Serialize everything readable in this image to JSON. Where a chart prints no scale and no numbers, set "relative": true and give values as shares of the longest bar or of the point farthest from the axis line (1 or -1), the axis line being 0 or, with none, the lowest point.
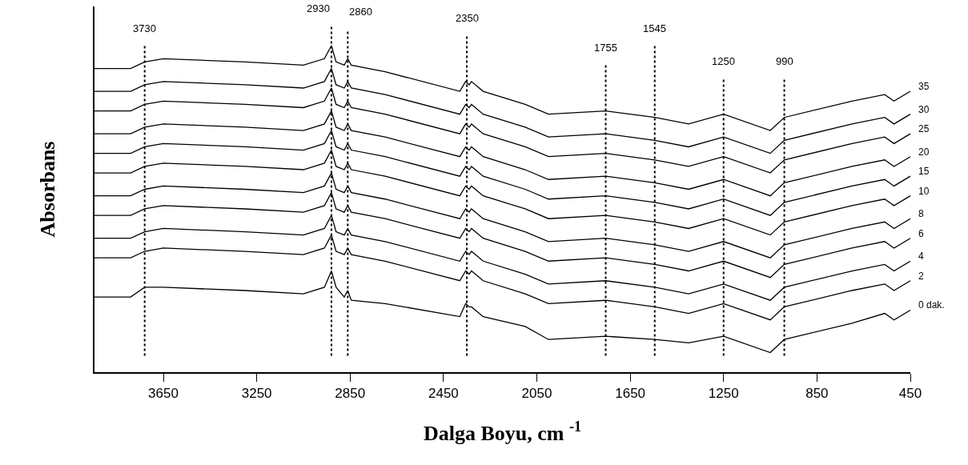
{
  "chart_data": {
    "type": "line",
    "relative": true,
    "xlabel": "Dalga Boyu, cm $^{-1}$",
    "ylabel": "Absorbans",
    "x": [
      3945,
      3790,
      3730,
      3650,
      3300,
      3050,
      2960,
      2930,
      2910,
      2875,
      2860,
      2845,
      2700,
      2380,
      2355,
      2340,
      2330,
      2280,
      2100,
      2000,
      1755,
      1545,
      1400,
      1250,
      1050,
      990,
      700,
      560,
      520,
      450
    ],
    "xlim": [
      3945,
      450
    ],
    "xticks": [
      3650,
      3250,
      2850,
      2450,
      2050,
      1650,
      1250,
      850,
      450
    ],
    "legend": false,
    "marker": "none",
    "line_style": "solid",
    "series": [
      {
        "name": "0 dak.",
        "color": "#000000",
        "values": [
          0.23,
          0.23,
          0.26,
          0.26,
          0.25,
          0.24,
          0.26,
          0.31,
          0.26,
          0.23,
          0.25,
          0.22,
          0.21,
          0.17,
          0.21,
          0.2,
          0.2,
          0.17,
          0.14,
          0.1,
          0.11,
          0.1,
          0.09,
          0.11,
          0.06,
          0.1,
          0.15,
          0.18,
          0.16,
          0.19
        ]
      },
      {
        "name": "2",
        "color": "#000000",
        "values": [
          0.35,
          0.35,
          0.37,
          0.38,
          0.37,
          0.36,
          0.38,
          0.42,
          0.37,
          0.36,
          0.38,
          0.36,
          0.34,
          0.28,
          0.31,
          0.3,
          0.31,
          0.28,
          0.24,
          0.21,
          0.22,
          0.2,
          0.18,
          0.21,
          0.16,
          0.2,
          0.25,
          0.27,
          0.25,
          0.28
        ]
      },
      {
        "name": "4",
        "color": "#000000",
        "values": [
          0.41,
          0.41,
          0.43,
          0.44,
          0.43,
          0.42,
          0.44,
          0.48,
          0.43,
          0.42,
          0.44,
          0.42,
          0.4,
          0.34,
          0.37,
          0.36,
          0.37,
          0.34,
          0.3,
          0.27,
          0.28,
          0.26,
          0.24,
          0.27,
          0.22,
          0.26,
          0.31,
          0.33,
          0.31,
          0.34
        ]
      },
      {
        "name": "6",
        "color": "#000000",
        "values": [
          0.48,
          0.48,
          0.5,
          0.51,
          0.5,
          0.49,
          0.51,
          0.55,
          0.5,
          0.49,
          0.51,
          0.49,
          0.47,
          0.41,
          0.44,
          0.43,
          0.44,
          0.41,
          0.37,
          0.34,
          0.35,
          0.33,
          0.31,
          0.34,
          0.29,
          0.33,
          0.38,
          0.4,
          0.38,
          0.41
        ]
      },
      {
        "name": "8",
        "color": "#000000",
        "values": [
          0.54,
          0.54,
          0.56,
          0.57,
          0.56,
          0.55,
          0.57,
          0.61,
          0.56,
          0.55,
          0.57,
          0.55,
          0.53,
          0.47,
          0.5,
          0.49,
          0.5,
          0.47,
          0.43,
          0.4,
          0.41,
          0.39,
          0.37,
          0.4,
          0.35,
          0.39,
          0.44,
          0.46,
          0.44,
          0.47
        ]
      },
      {
        "name": "10",
        "color": "#000000",
        "values": [
          0.61,
          0.61,
          0.63,
          0.64,
          0.63,
          0.62,
          0.64,
          0.68,
          0.63,
          0.62,
          0.64,
          0.62,
          0.6,
          0.54,
          0.57,
          0.56,
          0.57,
          0.54,
          0.5,
          0.47,
          0.48,
          0.46,
          0.44,
          0.47,
          0.42,
          0.46,
          0.51,
          0.53,
          0.51,
          0.54
        ]
      },
      {
        "name": "15",
        "color": "#000000",
        "values": [
          0.67,
          0.67,
          0.69,
          0.7,
          0.69,
          0.68,
          0.7,
          0.74,
          0.69,
          0.68,
          0.7,
          0.68,
          0.66,
          0.6,
          0.63,
          0.62,
          0.63,
          0.6,
          0.56,
          0.53,
          0.54,
          0.52,
          0.5,
          0.53,
          0.48,
          0.52,
          0.57,
          0.59,
          0.57,
          0.6
        ]
      },
      {
        "name": "20",
        "color": "#000000",
        "values": [
          0.73,
          0.73,
          0.75,
          0.76,
          0.75,
          0.74,
          0.76,
          0.8,
          0.75,
          0.74,
          0.76,
          0.74,
          0.72,
          0.66,
          0.69,
          0.68,
          0.69,
          0.66,
          0.62,
          0.59,
          0.6,
          0.58,
          0.56,
          0.59,
          0.54,
          0.58,
          0.63,
          0.65,
          0.63,
          0.66
        ]
      },
      {
        "name": "25",
        "color": "#000000",
        "values": [
          0.8,
          0.8,
          0.82,
          0.83,
          0.82,
          0.81,
          0.83,
          0.87,
          0.82,
          0.81,
          0.83,
          0.81,
          0.79,
          0.73,
          0.76,
          0.75,
          0.76,
          0.73,
          0.69,
          0.66,
          0.67,
          0.65,
          0.63,
          0.66,
          0.61,
          0.65,
          0.7,
          0.72,
          0.7,
          0.73
        ]
      },
      {
        "name": "30",
        "color": "#000000",
        "values": [
          0.86,
          0.86,
          0.88,
          0.89,
          0.88,
          0.87,
          0.89,
          0.93,
          0.88,
          0.87,
          0.89,
          0.87,
          0.85,
          0.79,
          0.82,
          0.81,
          0.82,
          0.79,
          0.75,
          0.72,
          0.73,
          0.71,
          0.69,
          0.72,
          0.67,
          0.71,
          0.76,
          0.78,
          0.76,
          0.79
        ]
      },
      {
        "name": "35",
        "color": "#000000",
        "values": [
          0.93,
          0.93,
          0.95,
          0.96,
          0.95,
          0.94,
          0.96,
          1.0,
          0.95,
          0.94,
          0.96,
          0.94,
          0.92,
          0.86,
          0.89,
          0.88,
          0.89,
          0.86,
          0.82,
          0.79,
          0.8,
          0.78,
          0.76,
          0.79,
          0.74,
          0.78,
          0.83,
          0.85,
          0.83,
          0.86
        ]
      }
    ],
    "ref_lines": [
      {
        "axis": "x",
        "value": 3730,
        "label": "3730",
        "line_style": "dotted"
      },
      {
        "axis": "x",
        "value": 2930,
        "label": "2930",
        "line_style": "dotted"
      },
      {
        "axis": "x",
        "value": 2860,
        "label": "2860",
        "line_style": "dotted"
      },
      {
        "axis": "x",
        "value": 2350,
        "label": "2350",
        "line_style": "dotted"
      },
      {
        "axis": "x",
        "value": 1755,
        "label": "1755",
        "line_style": "dotted"
      },
      {
        "axis": "x",
        "value": 1545,
        "label": "1545",
        "line_style": "dotted"
      },
      {
        "axis": "x",
        "value": 1250,
        "label": "1250",
        "line_style": "dotted"
      },
      {
        "axis": "x",
        "value": 990,
        "label": "990",
        "line_style": "dotted"
      }
    ]
  }
}
